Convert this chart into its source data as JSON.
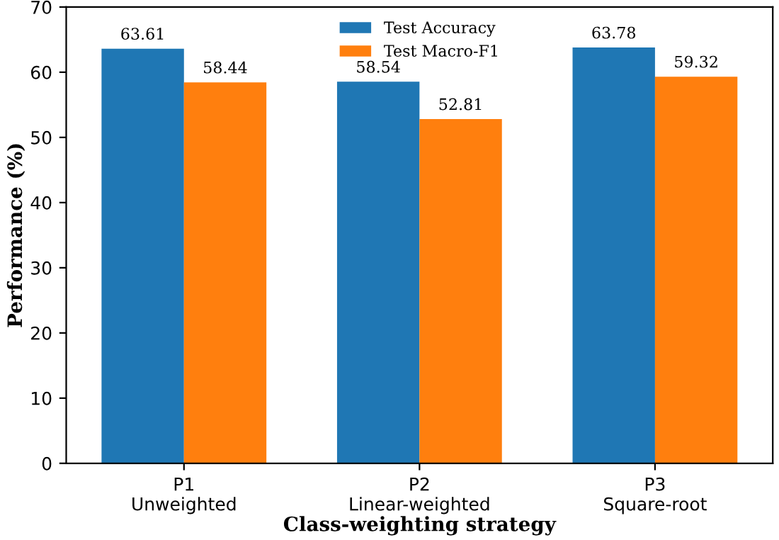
{
  "chart_data": {
    "type": "bar",
    "xlabel": "Class-weighting strategy",
    "ylabel": "Performance (%)",
    "categories": [
      "P1\nUnweighted",
      "P2\nLinear-weighted",
      "P3\nSquare-root"
    ],
    "series": [
      {
        "name": "Test Accuracy",
        "color": "#1f77b4",
        "values": [
          63.61,
          58.54,
          63.78
        ]
      },
      {
        "name": "Test Macro-F1",
        "color": "#ff7f0e",
        "values": [
          58.44,
          52.81,
          59.32
        ]
      }
    ],
    "ylim": [
      0,
      70
    ],
    "yticks": [
      0,
      10,
      20,
      30,
      40,
      50,
      60,
      70
    ],
    "grid": false,
    "legend": "top",
    "data_labels": true
  }
}
